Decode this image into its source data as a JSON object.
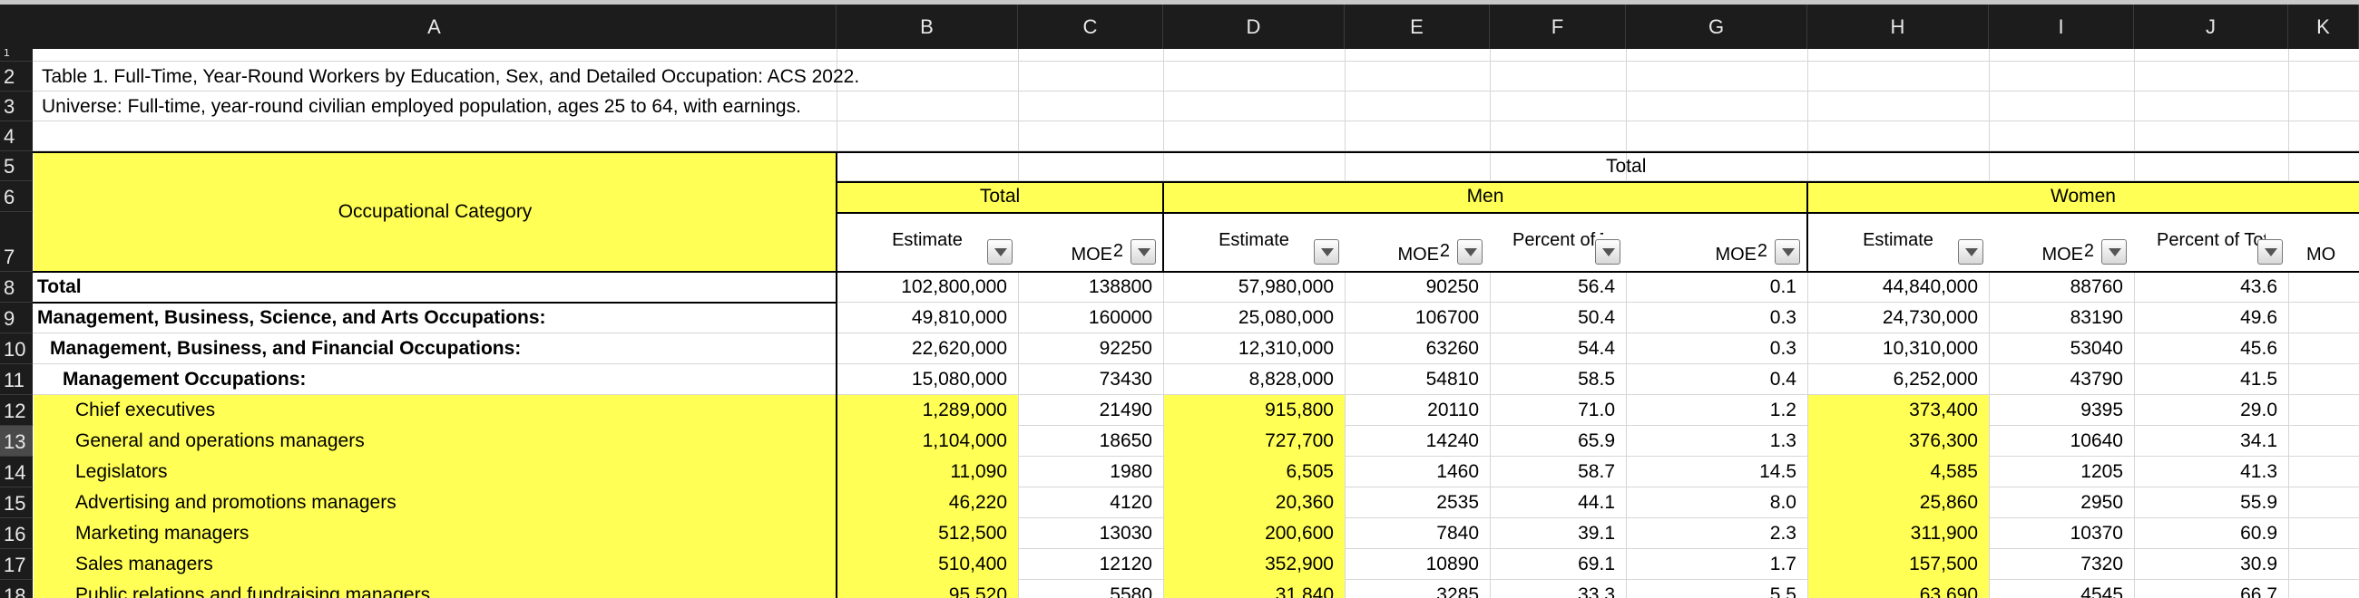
{
  "columns": [
    "A",
    "B",
    "C",
    "D",
    "E",
    "F",
    "G",
    "H",
    "I",
    "J",
    "K"
  ],
  "row_numbers": [
    "1",
    "2",
    "3",
    "4",
    "5",
    "6",
    "7",
    "8",
    "9",
    "10",
    "11",
    "12",
    "13",
    "14",
    "15",
    "16",
    "17",
    "18"
  ],
  "title_line": "Table 1. Full-Time, Year-Round Workers by Education, Sex, and Detailed Occupation: ACS 2022.",
  "universe_line": "Universe: Full-time, year-round civilian employed population, ages 25 to 64, with earnings.",
  "headers": {
    "occupational_category": "Occupational Category",
    "total_top": "Total",
    "total_group": "Total",
    "men_group": "Men",
    "women_group": "Women",
    "estimate": "Estimate",
    "moe": "MOE",
    "moe_sup": "2",
    "percent_of_total": "Percent of Total",
    "k_partial": "MO"
  },
  "rows": [
    {
      "label": "Total",
      "indent": 0,
      "bold": true,
      "vals": [
        "102,800,000",
        "138800",
        "57,980,000",
        "90250",
        "56.4",
        "0.1",
        "44,840,000",
        "88760",
        "43.6"
      ]
    },
    {
      "label": "Management, Business, Science, and Arts Occupations:",
      "indent": 0,
      "bold": true,
      "vals": [
        "49,810,000",
        "160000",
        "25,080,000",
        "106700",
        "50.4",
        "0.3",
        "24,730,000",
        "83190",
        "49.6"
      ]
    },
    {
      "label": "Management, Business, and Financial Occupations:",
      "indent": 1,
      "bold": true,
      "vals": [
        "22,620,000",
        "92250",
        "12,310,000",
        "63260",
        "54.4",
        "0.3",
        "10,310,000",
        "53040",
        "45.6"
      ]
    },
    {
      "label": "Management Occupations:",
      "indent": 2,
      "bold": true,
      "vals": [
        "15,080,000",
        "73430",
        "8,828,000",
        "54810",
        "58.5",
        "0.4",
        "6,252,000",
        "43790",
        "41.5"
      ]
    },
    {
      "label": "Chief executives",
      "indent": 3,
      "bold": false,
      "vals": [
        "1,289,000",
        "21490",
        "915,800",
        "20110",
        "71.0",
        "1.2",
        "373,400",
        "9395",
        "29.0"
      ]
    },
    {
      "label": "General and operations managers",
      "indent": 3,
      "bold": false,
      "vals": [
        "1,104,000",
        "18650",
        "727,700",
        "14240",
        "65.9",
        "1.3",
        "376,300",
        "10640",
        "34.1"
      ]
    },
    {
      "label": "Legislators",
      "indent": 3,
      "bold": false,
      "vals": [
        "11,090",
        "1980",
        "6,505",
        "1460",
        "58.7",
        "14.5",
        "4,585",
        "1205",
        "41.3"
      ]
    },
    {
      "label": "Advertising and promotions managers",
      "indent": 3,
      "bold": false,
      "vals": [
        "46,220",
        "4120",
        "20,360",
        "2535",
        "44.1",
        "8.0",
        "25,860",
        "2950",
        "55.9"
      ]
    },
    {
      "label": "Marketing managers",
      "indent": 3,
      "bold": false,
      "vals": [
        "512,500",
        "13030",
        "200,600",
        "7840",
        "39.1",
        "2.3",
        "311,900",
        "10370",
        "60.9"
      ]
    },
    {
      "label": "Sales managers",
      "indent": 3,
      "bold": false,
      "vals": [
        "510,400",
        "12120",
        "352,900",
        "10890",
        "69.1",
        "1.7",
        "157,500",
        "7320",
        "30.9"
      ]
    },
    {
      "label": "Public relations and fundraising managers",
      "indent": 3,
      "bold": false,
      "vals": [
        "95,520",
        "5580",
        "31,840",
        "3285",
        "33.3",
        "5.5",
        "63,690",
        "4545",
        "66.7"
      ]
    }
  ],
  "colors": {
    "header_bg": "#1c1c1c",
    "highlight": "#ffff55",
    "grid": "#d6d6d6"
  }
}
